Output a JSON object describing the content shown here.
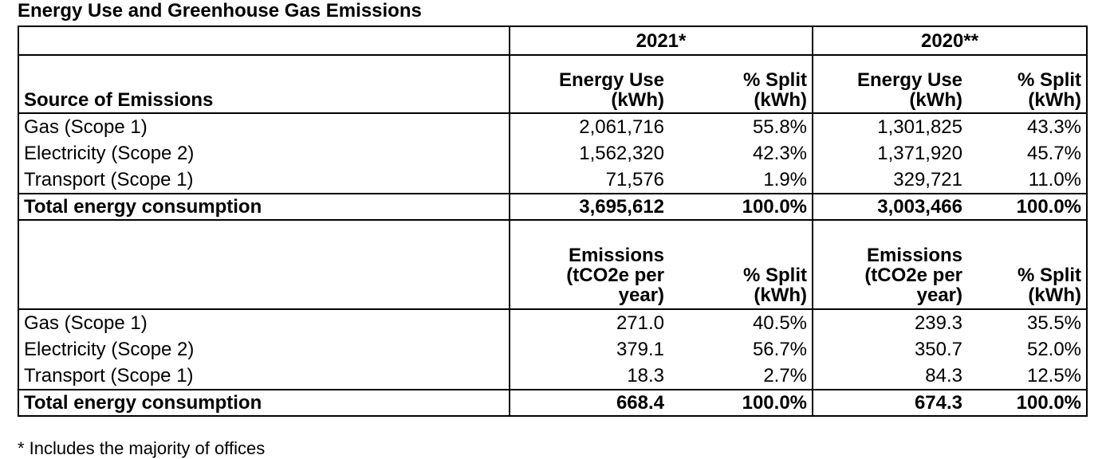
{
  "title": "Energy Use and Greenhouse Gas Emissions",
  "years": {
    "y2021": "2021*",
    "y2020": "2020**"
  },
  "energy_header": {
    "source": "Source of Emissions",
    "use_line1": "Energy Use",
    "use_line2": "(kWh)",
    "split_line1": "% Split",
    "split_line2": "(kWh)"
  },
  "energy_rows": [
    {
      "source": "Gas (Scope 1)",
      "use_2021": "2,061,716",
      "split_2021": "55.8%",
      "use_2020": "1,301,825",
      "split_2020": "43.3%"
    },
    {
      "source": "Electricity  (Scope 2)",
      "use_2021": "1,562,320",
      "split_2021": "42.3%",
      "use_2020": "1,371,920",
      "split_2020": "45.7%"
    },
    {
      "source": "Transport (Scope 1)",
      "use_2021": "71,576",
      "split_2021": "1.9%",
      "use_2020": "329,721",
      "split_2020": "11.0%"
    }
  ],
  "energy_total": {
    "label": "Total energy consumption",
    "use_2021": "3,695,612",
    "split_2021": "100.0%",
    "use_2020": "3,003,466",
    "split_2020": "100.0%"
  },
  "emissions_header": {
    "em_line1": "Emissions",
    "em_line2": "(tCO2e per",
    "em_line3": "year)",
    "split_line1": "% Split",
    "split_line2": "(kWh)"
  },
  "emissions_rows": [
    {
      "source": "Gas (Scope 1)",
      "em_2021": "271.0",
      "split_2021": "40.5%",
      "em_2020": "239.3",
      "split_2020": "35.5%"
    },
    {
      "source": "Electricity  (Scope 2)",
      "em_2021": "379.1",
      "split_2021": "56.7%",
      "em_2020": "350.7",
      "split_2020": "52.0%"
    },
    {
      "source": "Transport (Scope 1)",
      "em_2021": "18.3",
      "split_2021": "2.7%",
      "em_2020": "84.3",
      "split_2020": "12.5%"
    }
  ],
  "emissions_total": {
    "label": "Total energy consumption",
    "em_2021": "668.4",
    "split_2021": "100.0%",
    "em_2020": "674.3",
    "split_2020": "100.0%"
  },
  "footnote": "* Includes the majority of offices"
}
